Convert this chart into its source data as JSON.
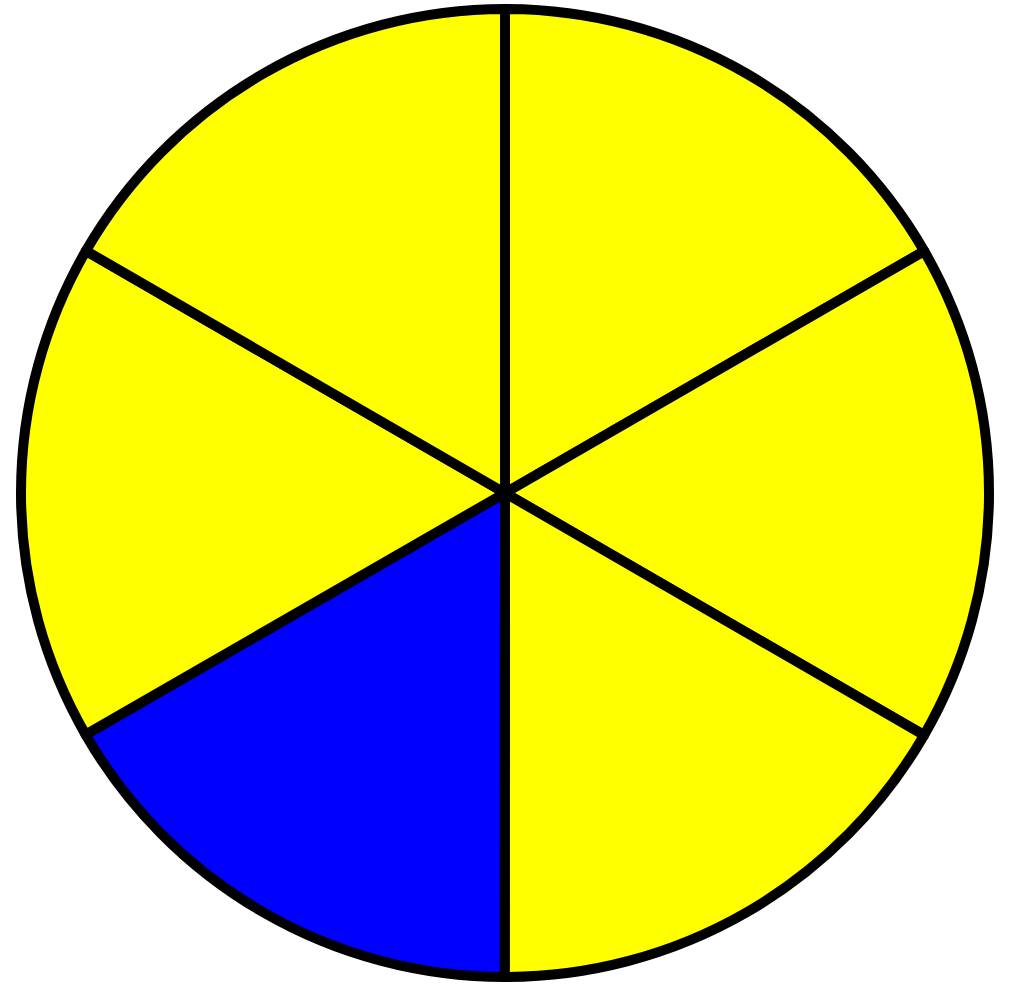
{
  "chart_data": {
    "type": "pie",
    "categories": [
      null,
      null,
      null,
      null,
      null,
      null
    ],
    "values": [
      16.67,
      16.67,
      16.67,
      16.67,
      16.66,
      16.66
    ],
    "colors": [
      "#ffff00",
      "#ffff00",
      "#ffff00",
      "#0000ff",
      "#ffff00",
      "#ffff00"
    ],
    "legend": false
  }
}
